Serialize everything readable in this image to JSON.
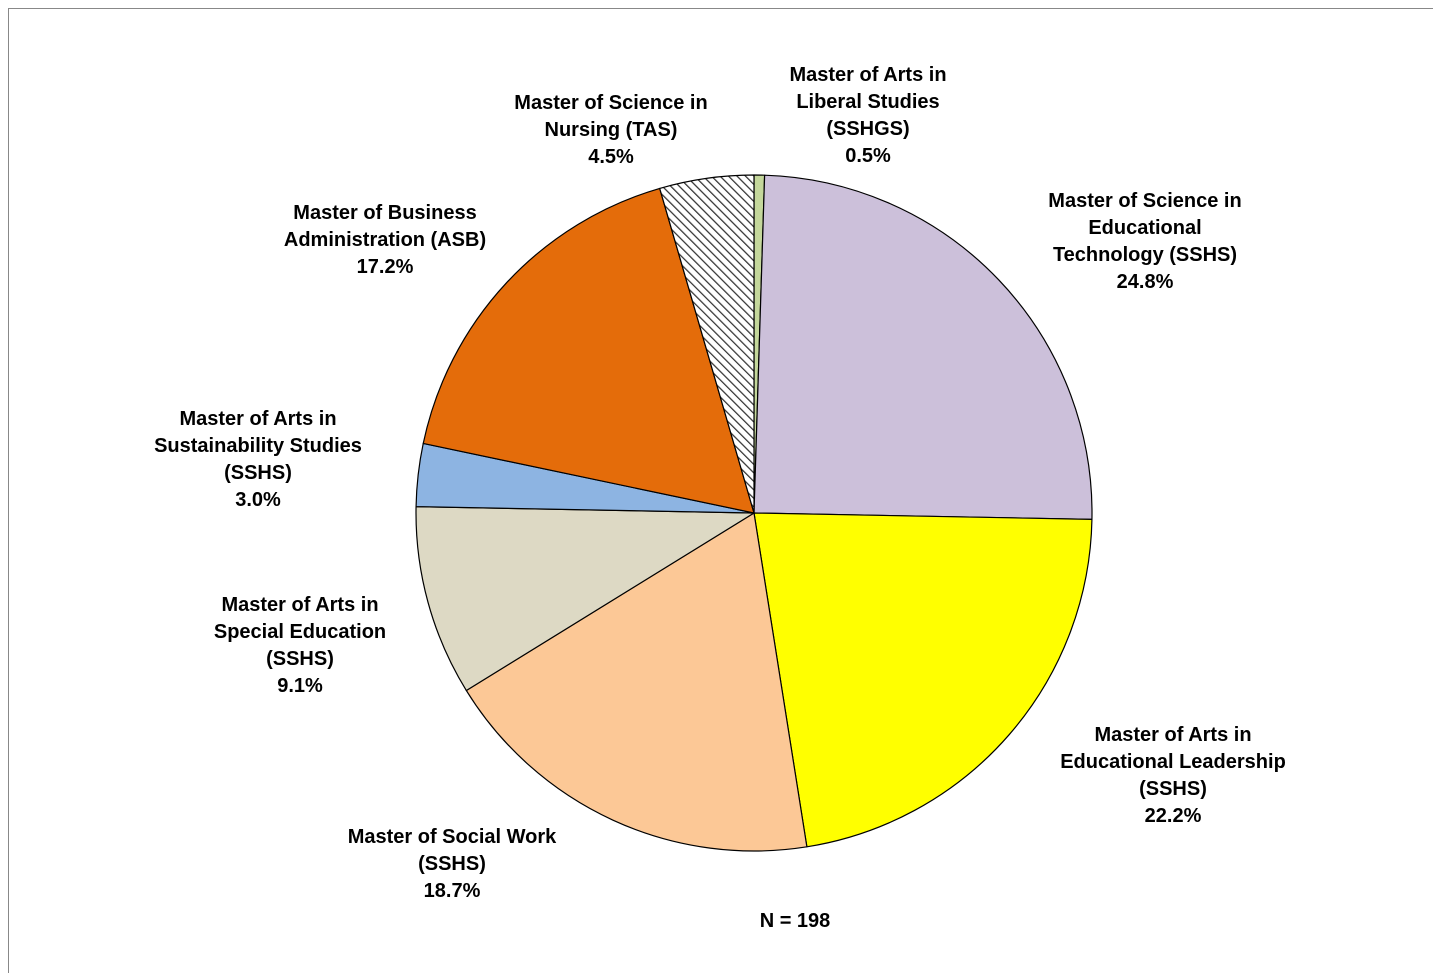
{
  "chart_data": {
    "type": "pie",
    "categories": [
      "Master of Arts in Liberal Studies (SSHGS)",
      "Master of Science in Educational Technology (SSHS)",
      "Master of Arts in Educational Leadership (SSHS)",
      "Master of Social Work (SSHS)",
      "Master of Arts in Special Education (SSHS)",
      "Master of Arts in Sustainability Studies (SSHS)",
      "Master of Business Administration (ASB)",
      "Master of Science in Nursing (TAS)"
    ],
    "values": [
      0.5,
      24.8,
      22.2,
      18.7,
      9.1,
      3.0,
      17.2,
      4.5
    ],
    "value_labels": [
      "0.5%",
      "24.8%",
      "22.2%",
      "18.7%",
      "9.1%",
      "3.0%",
      "17.2%",
      "4.5%"
    ],
    "colors": [
      "#c4d79b",
      "#ccc0da",
      "#ffff00",
      "#fcc896",
      "#ddd9c4",
      "#8db4e2",
      "#e46c0a",
      "#ffffff"
    ],
    "hatched": [
      false,
      false,
      false,
      false,
      false,
      false,
      false,
      true
    ],
    "annotation": "N = 198"
  }
}
